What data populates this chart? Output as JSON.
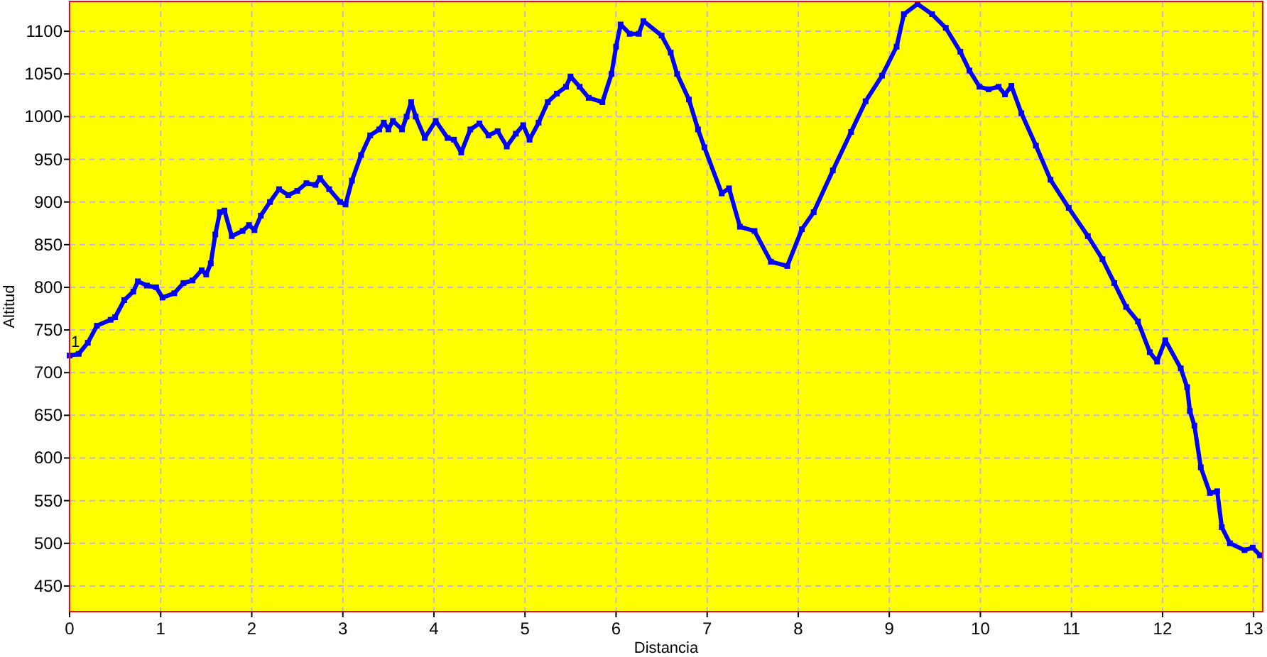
{
  "chart_data": {
    "type": "line",
    "xlabel": "Distancia",
    "ylabel": "Altitud",
    "xlim": [
      0,
      13.1
    ],
    "xticks": [
      0,
      1,
      2,
      3,
      4,
      5,
      6,
      7,
      8,
      9,
      10,
      11,
      12,
      13
    ],
    "ylim": [
      420,
      1135
    ],
    "yticks": [
      450,
      500,
      550,
      600,
      650,
      700,
      750,
      800,
      850,
      900,
      950,
      1000,
      1050,
      1100
    ],
    "grid": true,
    "marker": "square",
    "line_style": "solid",
    "annotations": [
      {
        "text": "1",
        "x": 0,
        "y": 720
      }
    ],
    "series": [
      {
        "color": "#0000ff",
        "x": [
          0,
          0.1,
          0.2,
          0.3,
          0.45,
          0.5,
          0.6,
          0.7,
          0.75,
          0.85,
          0.95,
          1.02,
          1.15,
          1.25,
          1.35,
          1.45,
          1.5,
          1.55,
          1.6,
          1.65,
          1.7,
          1.78,
          1.9,
          1.97,
          2.03,
          2.1,
          2.2,
          2.3,
          2.4,
          2.5,
          2.6,
          2.7,
          2.75,
          2.85,
          2.97,
          3.03,
          3.1,
          3.2,
          3.3,
          3.4,
          3.45,
          3.5,
          3.55,
          3.65,
          3.7,
          3.75,
          3.8,
          3.9,
          4.02,
          4.15,
          4.22,
          4.3,
          4.4,
          4.5,
          4.6,
          4.7,
          4.8,
          4.9,
          4.98,
          5.05,
          5.15,
          5.25,
          5.35,
          5.45,
          5.5,
          5.6,
          5.7,
          5.85,
          5.95,
          6,
          6.05,
          6.15,
          6.25,
          6.3,
          6.5,
          6.6,
          6.67,
          6.8,
          6.9,
          6.97,
          7.16,
          7.24,
          7.36,
          7.52,
          7.7,
          7.88,
          8.04,
          8.17,
          8.38,
          8.58,
          8.74,
          8.92,
          9.08,
          9.16,
          9.31,
          9.47,
          9.62,
          9.78,
          9.88,
          9.99,
          10.09,
          10.2,
          10.27,
          10.34,
          10.45,
          10.61,
          10.77,
          10.97,
          11.18,
          11.34,
          11.47,
          11.6,
          11.73,
          11.86,
          11.94,
          12.03,
          12.2,
          12.27,
          12.3,
          12.35,
          12.42,
          12.52,
          12.6,
          12.65,
          12.74,
          12.9,
          12.99,
          13.07
        ],
        "values": [
          720,
          722,
          735,
          755,
          762,
          765,
          785,
          795,
          807,
          802,
          800,
          788,
          793,
          805,
          808,
          820,
          815,
          828,
          862,
          888,
          890,
          860,
          866,
          873,
          867,
          884,
          900,
          915,
          908,
          913,
          922,
          920,
          928,
          915,
          900,
          897,
          925,
          955,
          978,
          985,
          993,
          985,
          995,
          985,
          1000,
          1017,
          1000,
          975,
          995,
          975,
          973,
          958,
          985,
          992,
          978,
          983,
          965,
          980,
          990,
          973,
          993,
          1017,
          1027,
          1035,
          1047,
          1035,
          1022,
          1017,
          1050,
          1082,
          1108,
          1097,
          1097,
          1112,
          1095,
          1075,
          1050,
          1020,
          985,
          964,
          910,
          916,
          871,
          866,
          830,
          825,
          868,
          888,
          937,
          982,
          1018,
          1048,
          1082,
          1120,
          1132,
          1120,
          1104,
          1076,
          1054,
          1035,
          1032,
          1035,
          1026,
          1036,
          1004,
          966,
          926,
          893,
          860,
          833,
          805,
          777,
          760,
          724,
          713,
          738,
          705,
          683,
          655,
          638,
          589,
          559,
          561,
          519,
          500,
          492,
          495,
          486
        ]
      }
    ]
  }
}
